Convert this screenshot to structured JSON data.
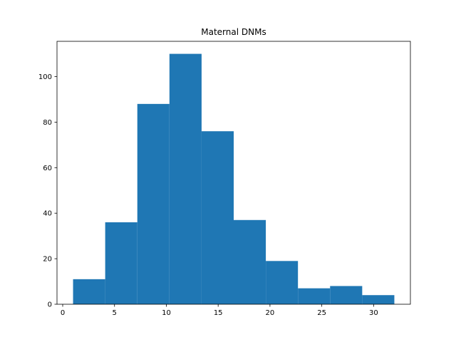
{
  "chart_data": {
    "type": "bar",
    "subtype": "histogram",
    "title": "Maternal DNMs",
    "xlabel": "",
    "ylabel": "",
    "xlim": [
      -0.55,
      33.55
    ],
    "ylim": [
      0,
      115.5
    ],
    "xticks": [
      0,
      5,
      10,
      15,
      20,
      25,
      30
    ],
    "yticks": [
      0,
      20,
      40,
      60,
      80,
      100
    ],
    "bin_edges": [
      1,
      4.1,
      7.2,
      10.3,
      13.4,
      16.5,
      19.6,
      22.7,
      25.8,
      28.9,
      32
    ],
    "counts": [
      11,
      36,
      88,
      110,
      76,
      37,
      19,
      7,
      8,
      4
    ],
    "bar_color": "#1f77b4",
    "grid": false,
    "legend": "none"
  }
}
